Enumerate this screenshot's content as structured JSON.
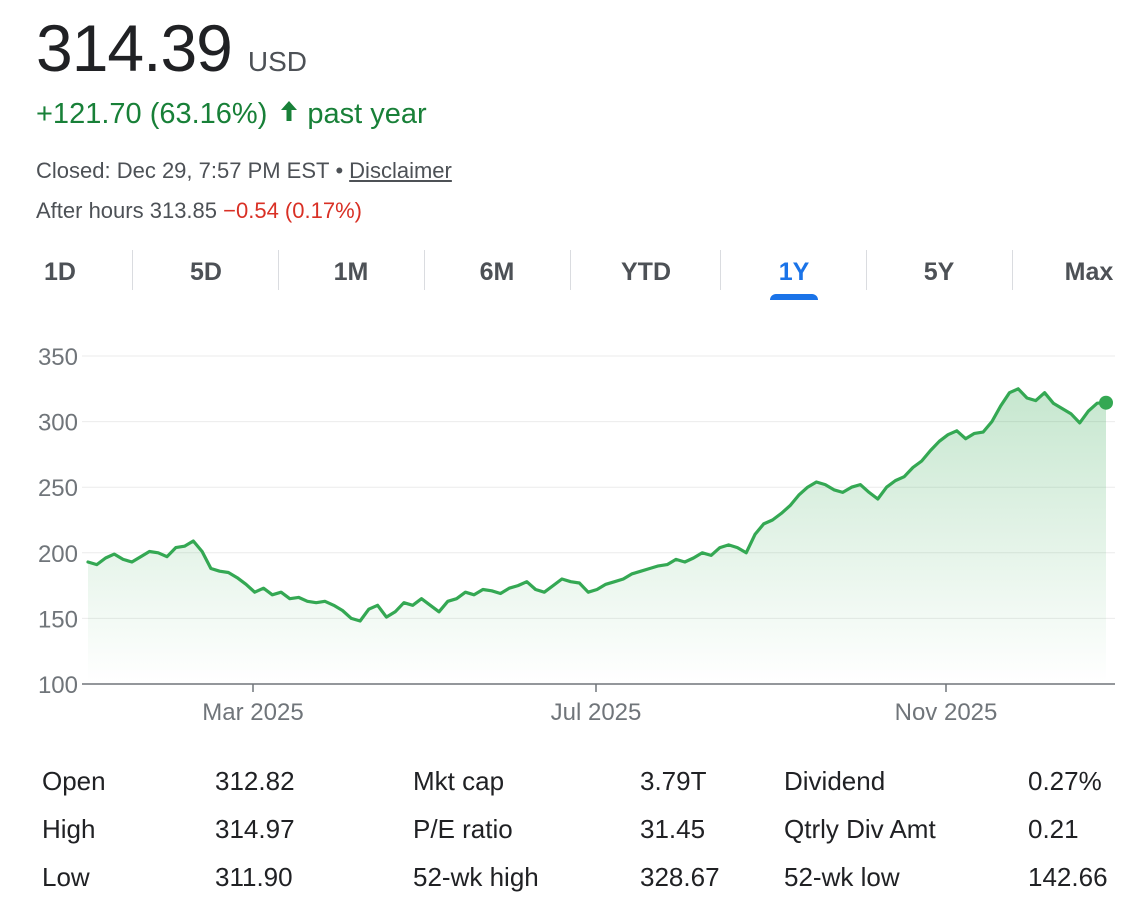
{
  "quote": {
    "price": "314.39",
    "currency": "USD",
    "change": "+121.70 (63.16%)",
    "change_period": "past year",
    "closed_text": "Closed: Dec 29, 7:57 PM EST",
    "separator": "•",
    "disclaimer": "Disclaimer",
    "after_hours_label": "After hours 313.85",
    "after_hours_change": "−0.54 (0.17%)"
  },
  "tabs": [
    "1D",
    "5D",
    "1M",
    "6M",
    "YTD",
    "1Y",
    "5Y",
    "Max"
  ],
  "active_tab": "1Y",
  "colors": {
    "positive": "#188038",
    "negative": "#d93025",
    "accent": "#1a73e8",
    "line": "#34a853"
  },
  "chart_data": {
    "type": "line",
    "title": "",
    "xlabel": "",
    "ylabel": "",
    "ylim": [
      100,
      350
    ],
    "yticks": [
      100,
      150,
      200,
      250,
      300,
      350
    ],
    "xticks": [
      "Mar 2025",
      "Jul 2025",
      "Nov 2025"
    ],
    "grid": true,
    "series": [
      {
        "values": [
          193,
          191,
          196,
          199,
          195,
          193,
          197,
          201,
          200,
          197,
          204,
          205,
          209,
          201,
          188,
          186,
          185,
          181,
          176,
          170,
          173,
          168,
          170,
          165,
          166,
          163,
          162,
          163,
          160,
          156,
          150,
          148,
          157,
          160,
          151,
          155,
          162,
          160,
          165,
          160,
          155,
          163,
          165,
          170,
          168,
          172,
          171,
          169,
          173,
          175,
          178,
          172,
          170,
          175,
          180,
          178,
          177,
          170,
          172,
          176,
          178,
          180,
          184,
          186,
          188,
          190,
          191,
          195,
          193,
          196,
          200,
          198,
          204,
          206,
          204,
          200,
          214,
          222,
          225,
          230,
          236,
          244,
          250,
          254,
          252,
          248,
          246,
          250,
          252,
          246,
          241,
          250,
          255,
          258,
          265,
          270,
          278,
          285,
          290,
          293,
          287,
          291,
          292,
          300,
          312,
          322,
          325,
          318,
          316,
          322,
          314,
          310,
          306,
          299,
          308,
          314,
          314.39
        ]
      }
    ]
  },
  "stats": [
    [
      {
        "label": "Open",
        "value": "312.82"
      },
      {
        "label": "Mkt cap",
        "value": "3.79T"
      },
      {
        "label": "Dividend",
        "value": "0.27%"
      }
    ],
    [
      {
        "label": "High",
        "value": "314.97"
      },
      {
        "label": "P/E ratio",
        "value": "31.45"
      },
      {
        "label": "Qtrly Div Amt",
        "value": "0.21"
      }
    ],
    [
      {
        "label": "Low",
        "value": "311.90"
      },
      {
        "label": "52-wk high",
        "value": "328.67"
      },
      {
        "label": "52-wk low",
        "value": "142.66"
      }
    ]
  ]
}
